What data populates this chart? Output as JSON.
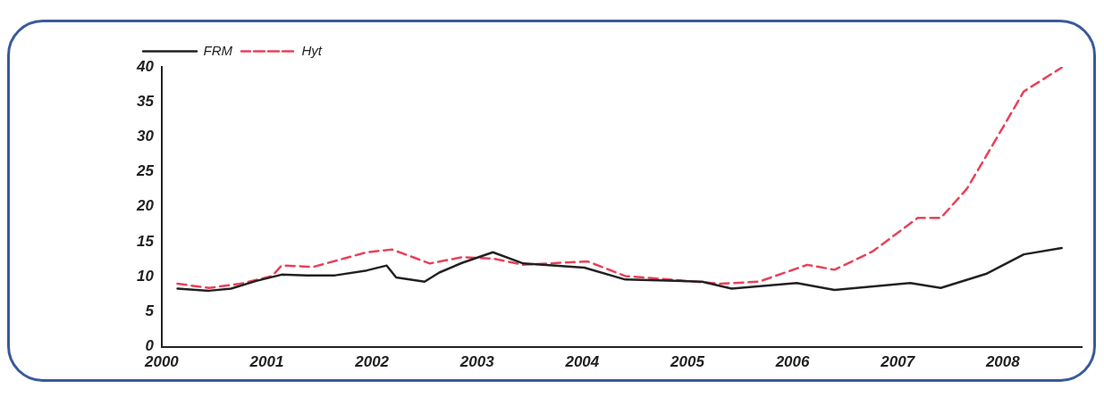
{
  "chart_data": {
    "type": "line",
    "xlim": [
      2000,
      2008.75
    ],
    "xticks": [
      2000,
      2001,
      2002,
      2003,
      2004,
      2005,
      2006,
      2007,
      2008
    ],
    "ylim": [
      0,
      40
    ],
    "yticks": [
      0,
      5,
      10,
      15,
      20,
      25,
      30,
      35,
      40
    ],
    "grid": false,
    "legend": "top left",
    "marker": "none",
    "series": [
      {
        "name": "FRM",
        "color": "#222222",
        "line_style": "solid",
        "x": [
          2000.15,
          2000.45,
          2000.66,
          2000.9,
          2001.14,
          2001.38,
          2001.65,
          2001.95,
          2002.14,
          2002.23,
          2002.5,
          2002.64,
          2002.86,
          2003.15,
          2003.44,
          2004.02,
          2004.41,
          2005.14,
          2005.42,
          2006.04,
          2006.4,
          2007.12,
          2007.41,
          2007.84,
          2008.2,
          2008.56
        ],
        "values": [
          8.3,
          8.0,
          8.3,
          9.4,
          10.3,
          10.2,
          10.2,
          10.9,
          11.6,
          9.9,
          9.3,
          10.6,
          12.0,
          13.5,
          11.9,
          11.3,
          9.6,
          9.3,
          8.3,
          9.1,
          8.1,
          9.1,
          8.4,
          10.4,
          13.2,
          14.1
        ]
      },
      {
        "name": "Hyt",
        "color": "#e8415a",
        "line_style": "dashed",
        "x": [
          2000.15,
          2000.45,
          2000.75,
          2001.05,
          2001.14,
          2001.44,
          2001.95,
          2002.19,
          2002.55,
          2002.86,
          2003.15,
          2003.44,
          2004.05,
          2004.41,
          2005.32,
          2005.68,
          2006.14,
          2006.4,
          2006.76,
          2007.19,
          2007.41,
          2007.66,
          2007.91,
          2008.2,
          2008.56
        ],
        "values": [
          9.0,
          8.4,
          9.0,
          10.1,
          11.6,
          11.4,
          13.5,
          13.9,
          11.9,
          12.8,
          12.6,
          11.7,
          12.2,
          10.1,
          9.0,
          9.3,
          11.7,
          11.0,
          13.6,
          18.4,
          18.4,
          22.6,
          29.0,
          36.5,
          39.9
        ]
      }
    ]
  }
}
